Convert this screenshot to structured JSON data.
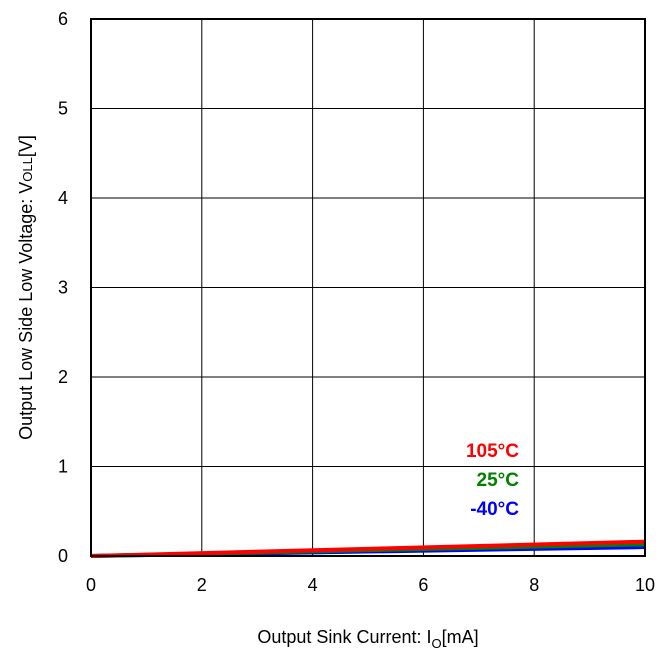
{
  "chart_data": {
    "type": "line",
    "xlabel": {
      "main": "Output Sink Current: I",
      "sub": "O",
      "tail": "[mA]"
    },
    "ylabel": {
      "main": "Output Low Side Low Voltage: V",
      "sub": "OLL",
      "tail": "[V]"
    },
    "xlim": [
      0,
      10
    ],
    "ylim": [
      0,
      6
    ],
    "x_ticks": [
      "0",
      "2",
      "4",
      "6",
      "8",
      "10"
    ],
    "y_ticks": [
      "0",
      "1",
      "2",
      "3",
      "4",
      "5",
      "6"
    ],
    "grid": true,
    "series": [
      {
        "name": "-40°C",
        "color": "#0000ff",
        "x": [
          0,
          10
        ],
        "y": [
          0,
          0.1
        ]
      },
      {
        "name": "25°C",
        "color": "#008000",
        "x": [
          0,
          10
        ],
        "y": [
          0,
          0.13
        ]
      },
      {
        "name": "105°C",
        "color": "#ff0000",
        "x": [
          0,
          10
        ],
        "y": [
          0,
          0.16
        ]
      }
    ],
    "legend_order": [
      "105°C",
      "25°C",
      "-40°C"
    ]
  }
}
